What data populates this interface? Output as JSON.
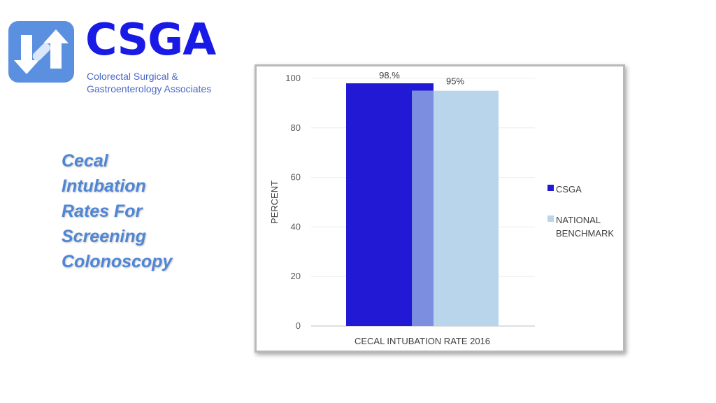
{
  "logo": {
    "name": "CSGA",
    "subtitle_lines": [
      "Colorectal Surgical &",
      "Gastroenterology Associates"
    ],
    "icon": "csga-logo-icon",
    "colors": {
      "primary": "#1a1ae6",
      "icon": "#5b8fe0"
    }
  },
  "side_title": {
    "lines": [
      "Cecal",
      "Intubation",
      "Rates For",
      "Screening",
      "Colonoscopy"
    ],
    "color": "#4f86d6"
  },
  "chart_data": {
    "type": "bar",
    "categories": [
      "CECAL INTUBATION RATE 2016"
    ],
    "series": [
      {
        "name": "CSGA",
        "values": [
          98
        ],
        "data_label": "98.%",
        "color": "#2219d4"
      },
      {
        "name": "NATIONAL BENCHMARK",
        "values": [
          95
        ],
        "data_label": "95%",
        "color": "#b8d5ec"
      }
    ],
    "xlabel": "CECAL INTUBATION RATE 2016",
    "ylabel": "PERCENT",
    "ylim": [
      0,
      100
    ],
    "yticks": [
      0,
      20,
      40,
      60,
      80,
      100
    ],
    "grid": true,
    "legend_position": "right",
    "bar_overlap": true
  }
}
